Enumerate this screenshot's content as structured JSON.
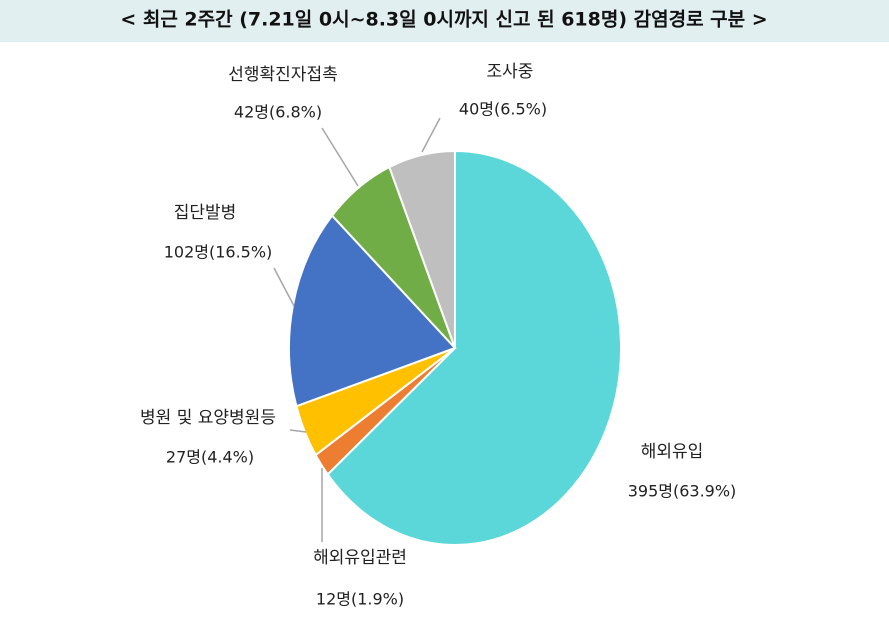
{
  "chart_data": {
    "type": "pie",
    "title": "< 최근 2주간 (7.21일 0시~8.3일 0시까지 신고 된 618명)  감염경로 구분 >",
    "categories": [
      "해외유입",
      "해외유입관련",
      "병원 및 요양병원등",
      "집단발병",
      "선행확진자접촉",
      "조사중"
    ],
    "values": [
      395,
      12,
      27,
      102,
      42,
      40
    ],
    "value_labels": [
      "395명(63.9%)",
      "12명(1.9%)",
      "27명(4.4%)",
      "102명(16.5%)",
      "42명(6.8%)",
      "40명(6.5%)"
    ],
    "colors": [
      "#5bd7d9",
      "#ed7d31",
      "#ffc000",
      "#4472c4",
      "#70ad47",
      "#bfbfbf"
    ]
  }
}
